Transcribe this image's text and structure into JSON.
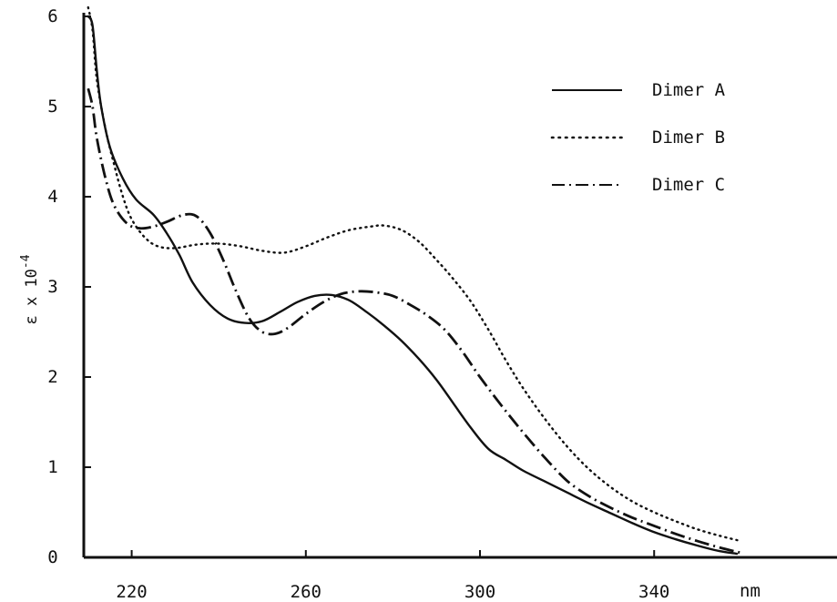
{
  "chart_data": {
    "type": "line",
    "xlabel": "",
    "x_unit": "nm",
    "ylabel": {
      "base": "ε x 10",
      "exponent": "-4"
    },
    "xlim": [
      209,
      382
    ],
    "ylim": [
      0,
      6
    ],
    "x_ticks": [
      220,
      260,
      300,
      340
    ],
    "x_tick_labels": [
      "220",
      "260",
      "300",
      "340"
    ],
    "y_ticks": [
      0,
      1,
      2,
      3,
      4,
      5,
      6
    ],
    "y_tick_labels": [
      "0",
      "1",
      "2",
      "3",
      "4",
      "5",
      "6"
    ],
    "legend_position": "top-right",
    "series": [
      {
        "name": "Dimer A",
        "style": "solid",
        "x": [
          210,
          211,
          212,
          213,
          215,
          218,
          221,
          225,
          228,
          231,
          234,
          238,
          242,
          246,
          250,
          254,
          258,
          262,
          266,
          270,
          274,
          278,
          282,
          286,
          290,
          294,
          298,
          302,
          306,
          310,
          315,
          320,
          325,
          330,
          335,
          340,
          345,
          350,
          355,
          359
        ],
        "y": [
          6.0,
          5.9,
          5.4,
          5.0,
          4.55,
          4.2,
          3.97,
          3.8,
          3.6,
          3.35,
          3.05,
          2.8,
          2.65,
          2.6,
          2.62,
          2.72,
          2.83,
          2.9,
          2.91,
          2.85,
          2.72,
          2.57,
          2.4,
          2.2,
          1.97,
          1.7,
          1.43,
          1.2,
          1.08,
          0.96,
          0.84,
          0.72,
          0.6,
          0.49,
          0.38,
          0.28,
          0.2,
          0.13,
          0.07,
          0.04
        ]
      },
      {
        "name": "Dimer B",
        "style": "dotted",
        "x": [
          210,
          211,
          212,
          214,
          216,
          218,
          220,
          223,
          226,
          230,
          235,
          240,
          245,
          250,
          255,
          260,
          265,
          270,
          275,
          278,
          282,
          286,
          290,
          294,
          298,
          302,
          306,
          310,
          315,
          320,
          325,
          330,
          335,
          340,
          345,
          350,
          355,
          360
        ],
        "y": [
          6.1,
          5.85,
          5.3,
          4.75,
          4.35,
          4.0,
          3.75,
          3.55,
          3.45,
          3.43,
          3.47,
          3.48,
          3.45,
          3.4,
          3.38,
          3.45,
          3.55,
          3.63,
          3.67,
          3.68,
          3.63,
          3.5,
          3.3,
          3.08,
          2.83,
          2.52,
          2.18,
          1.87,
          1.53,
          1.23,
          0.98,
          0.78,
          0.62,
          0.5,
          0.4,
          0.31,
          0.24,
          0.18
        ]
      },
      {
        "name": "Dimer C",
        "style": "dash-dot",
        "x": [
          210,
          211,
          212,
          214,
          216,
          219,
          222,
          225,
          228,
          232,
          235,
          238,
          241,
          244,
          247,
          250,
          253,
          256,
          260,
          264,
          268,
          272,
          276,
          280,
          284,
          288,
          292,
          296,
          300,
          305,
          310,
          315,
          320,
          325,
          330,
          335,
          340,
          345,
          350,
          355,
          360
        ],
        "y": [
          5.2,
          5.0,
          4.65,
          4.2,
          3.9,
          3.7,
          3.65,
          3.67,
          3.72,
          3.8,
          3.78,
          3.6,
          3.3,
          2.95,
          2.65,
          2.5,
          2.48,
          2.55,
          2.7,
          2.83,
          2.92,
          2.95,
          2.94,
          2.9,
          2.8,
          2.68,
          2.52,
          2.28,
          2.0,
          1.68,
          1.38,
          1.1,
          0.85,
          0.68,
          0.55,
          0.44,
          0.35,
          0.26,
          0.18,
          0.11,
          0.05
        ]
      }
    ]
  }
}
